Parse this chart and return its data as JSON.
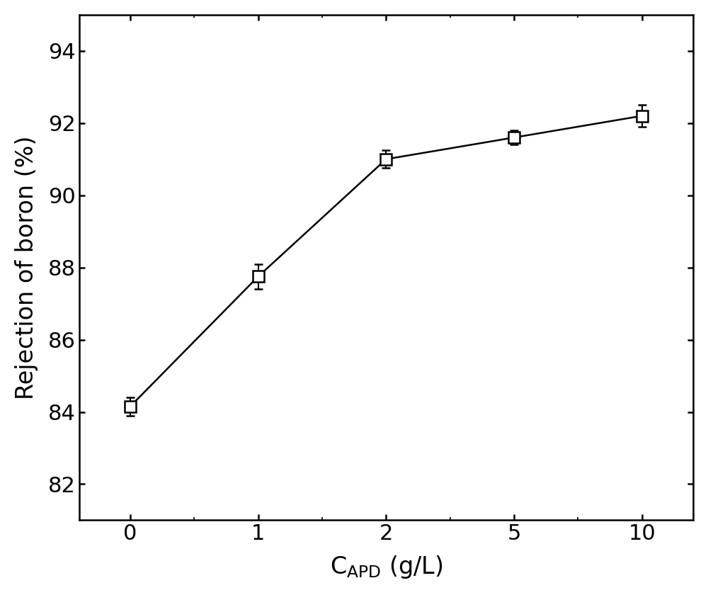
{
  "x_positions": [
    0,
    1,
    2,
    3,
    4
  ],
  "x_labels": [
    "0",
    "1",
    "2",
    "5",
    "10"
  ],
  "y": [
    84.15,
    87.75,
    91.0,
    91.6,
    92.2
  ],
  "yerr": [
    0.25,
    0.35,
    0.25,
    0.2,
    0.3
  ],
  "ylabel": "Rejection of boron (%)",
  "xlim": [
    -0.4,
    4.4
  ],
  "ylim": [
    81,
    95
  ],
  "yticks": [
    82,
    84,
    86,
    88,
    90,
    92,
    94
  ],
  "line_color": "#000000",
  "marker_color": "#ffffff",
  "marker_edge_color": "#000000",
  "marker_size": 12,
  "marker": "s",
  "line_style": "-",
  "line_width": 1.8,
  "axis_linewidth": 1.8,
  "tick_label_fontsize": 22,
  "axis_label_fontsize": 24,
  "capsize": 4,
  "elinewidth": 1.5,
  "background_color": "#ffffff"
}
